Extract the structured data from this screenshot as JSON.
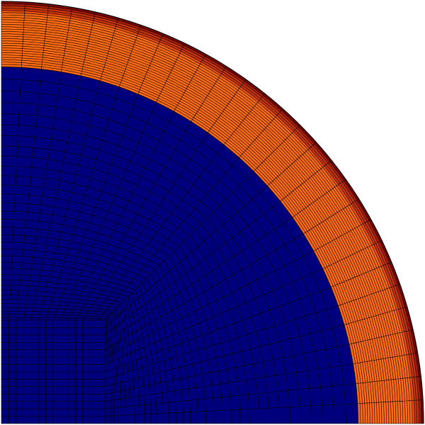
{
  "figure": {
    "type": "quarter-disk finite element mesh",
    "colors": {
      "background": "#ffffff",
      "core": "#00007f",
      "outer_layer": "#ff6a13",
      "skin_gradient": [
        "#ff6a13",
        "#e94e10",
        "#c9330b",
        "#a61d07",
        "#7f0000"
      ],
      "mesh_lines": "#000000"
    },
    "regions": [
      {
        "name": "core",
        "color": "#00007f",
        "radius_fraction": 0.845
      },
      {
        "name": "outer-layer",
        "color": "#ff6a13",
        "radius_fraction_inner": 0.845,
        "radius_fraction_outer": 0.968
      },
      {
        "name": "skin",
        "gradient": true,
        "radius_fraction_inner": 0.968,
        "radius_fraction_outer": 1.0
      }
    ],
    "mesh": {
      "inner_block_fraction": 0.245,
      "block_divisions": 14,
      "core_radial_divisions": 34,
      "layer_radial_divisions": 22,
      "skin_radial_divisions": 6,
      "angular_divisions_outer": 28
    }
  }
}
